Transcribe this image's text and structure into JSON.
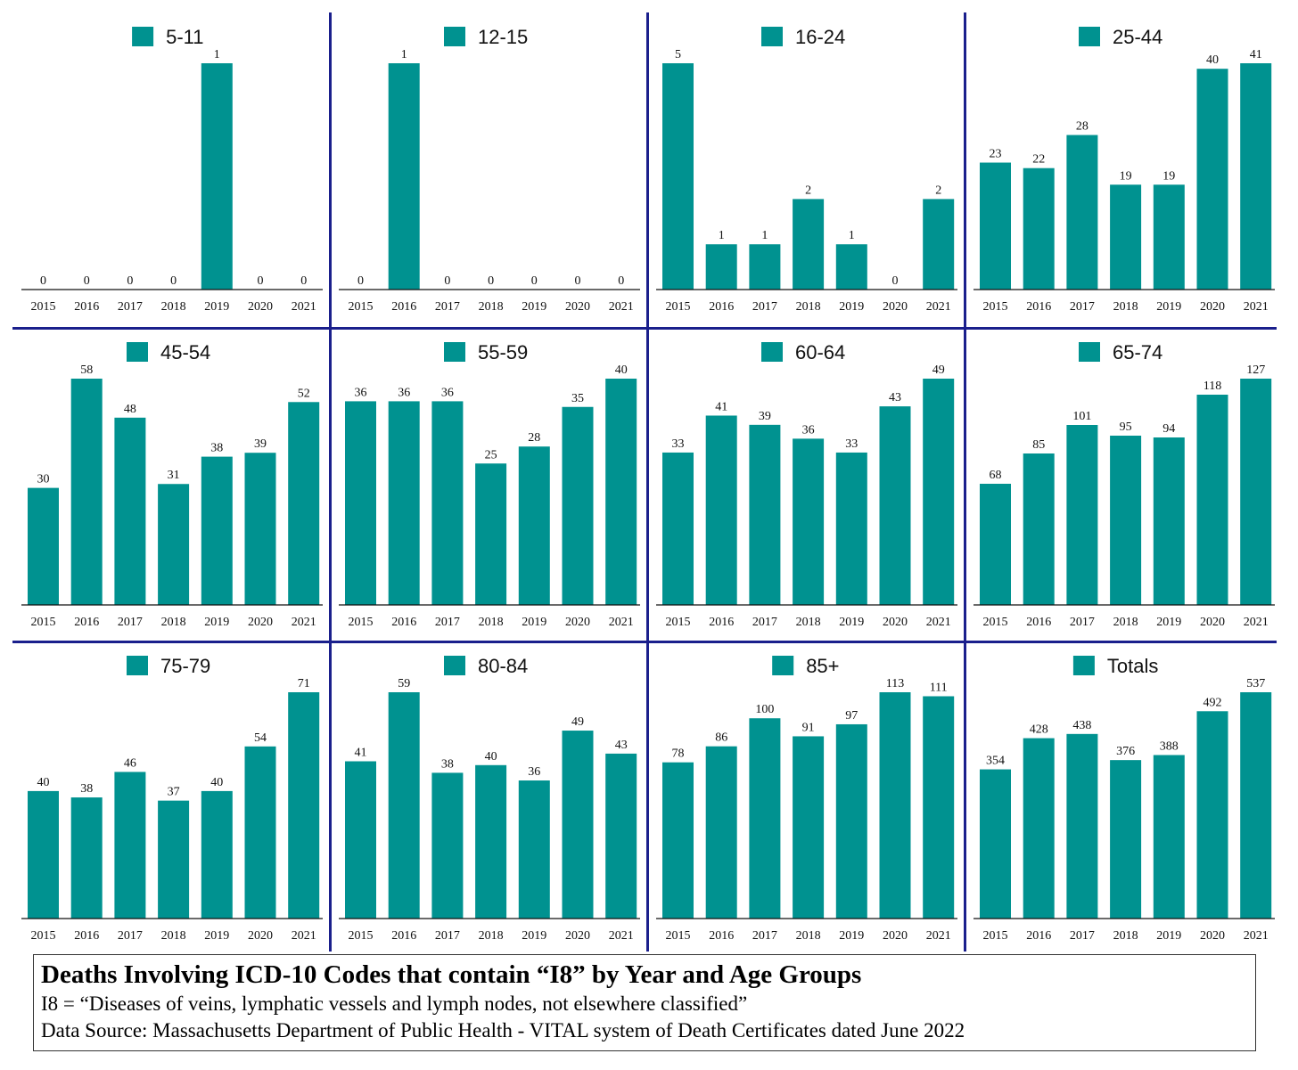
{
  "colors": {
    "bar": "#009290",
    "divider": "#1a1f8c",
    "text": "#111111"
  },
  "chart_data": [
    {
      "type": "bar",
      "legend": "5-11",
      "categories": [
        "2015",
        "2016",
        "2017",
        "2018",
        "2019",
        "2020",
        "2021"
      ],
      "values": [
        0,
        0,
        0,
        0,
        1,
        0,
        0
      ]
    },
    {
      "type": "bar",
      "legend": "12-15",
      "categories": [
        "2015",
        "2016",
        "2017",
        "2018",
        "2019",
        "2020",
        "2021"
      ],
      "values": [
        0,
        1,
        0,
        0,
        0,
        0,
        0
      ]
    },
    {
      "type": "bar",
      "legend": "16-24",
      "categories": [
        "2015",
        "2016",
        "2017",
        "2018",
        "2019",
        "2020",
        "2021"
      ],
      "values": [
        5,
        1,
        1,
        2,
        1,
        0,
        2
      ]
    },
    {
      "type": "bar",
      "legend": "25-44",
      "categories": [
        "2015",
        "2016",
        "2017",
        "2018",
        "2019",
        "2020",
        "2021"
      ],
      "values": [
        23,
        22,
        28,
        19,
        19,
        40,
        41
      ]
    },
    {
      "type": "bar",
      "legend": "45-54",
      "categories": [
        "2015",
        "2016",
        "2017",
        "2018",
        "2019",
        "2020",
        "2021"
      ],
      "values": [
        30,
        58,
        48,
        31,
        38,
        39,
        52
      ]
    },
    {
      "type": "bar",
      "legend": "55-59",
      "categories": [
        "2015",
        "2016",
        "2017",
        "2018",
        "2019",
        "2020",
        "2021"
      ],
      "values": [
        36,
        36,
        36,
        25,
        28,
        35,
        40
      ]
    },
    {
      "type": "bar",
      "legend": "60-64",
      "categories": [
        "2015",
        "2016",
        "2017",
        "2018",
        "2019",
        "2020",
        "2021"
      ],
      "values": [
        33,
        41,
        39,
        36,
        33,
        43,
        49
      ]
    },
    {
      "type": "bar",
      "legend": "65-74",
      "categories": [
        "2015",
        "2016",
        "2017",
        "2018",
        "2019",
        "2020",
        "2021"
      ],
      "values": [
        68,
        85,
        101,
        95,
        94,
        118,
        127
      ]
    },
    {
      "type": "bar",
      "legend": "75-79",
      "categories": [
        "2015",
        "2016",
        "2017",
        "2018",
        "2019",
        "2020",
        "2021"
      ],
      "values": [
        40,
        38,
        46,
        37,
        40,
        54,
        71
      ]
    },
    {
      "type": "bar",
      "legend": "80-84",
      "categories": [
        "2015",
        "2016",
        "2017",
        "2018",
        "2019",
        "2020",
        "2021"
      ],
      "values": [
        41,
        59,
        38,
        40,
        36,
        49,
        43
      ]
    },
    {
      "type": "bar",
      "legend": "85+",
      "categories": [
        "2015",
        "2016",
        "2017",
        "2018",
        "2019",
        "2020",
        "2021"
      ],
      "values": [
        78,
        86,
        100,
        91,
        97,
        113,
        111
      ]
    },
    {
      "type": "bar",
      "legend": "Totals",
      "categories": [
        "2015",
        "2016",
        "2017",
        "2018",
        "2019",
        "2020",
        "2021"
      ],
      "values": [
        354,
        428,
        438,
        376,
        388,
        492,
        537
      ]
    }
  ],
  "caption": {
    "title": "Deaths Involving ICD-10 Codes that contain “I8” by Year and Age Groups",
    "line1": "I8 = “Diseases of veins, lymphatic vessels and lymph nodes, not elsewhere classified”",
    "line2": "Data Source:  Massachusetts Department of Public Health - VITAL system of Death Certificates dated June 2022"
  }
}
